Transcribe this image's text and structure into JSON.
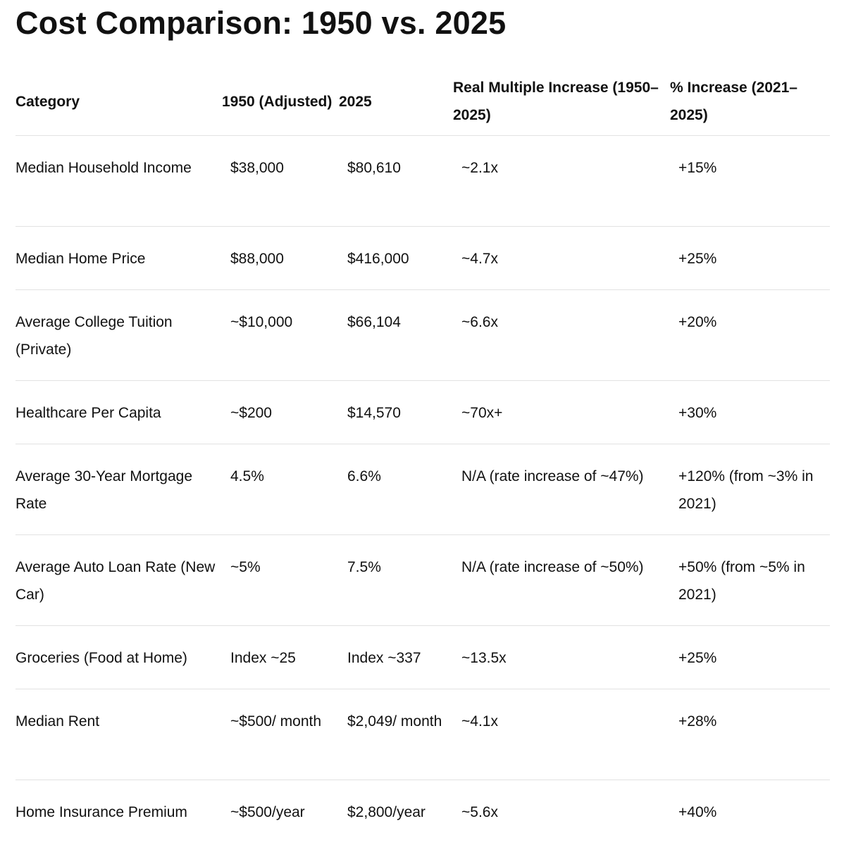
{
  "title": "Cost Comparison: 1950 vs. 2025",
  "table": {
    "headers": [
      "Category",
      "1950 (Adjusted)",
      "2025",
      "Real Multiple Increase (1950–2025)",
      "% Increase (2021–2025)"
    ],
    "rows": [
      [
        "Median Household Income",
        "$38,000",
        "$80,610",
        "~2.1x",
        "+15%"
      ],
      [
        "Median Home Price",
        "$88,000",
        "$416,000",
        "~4.7x",
        "+25%"
      ],
      [
        "Average College Tuition (Private)",
        "~$10,000",
        "$66,104",
        "~6.6x",
        "+20%"
      ],
      [
        "Healthcare Per Capita",
        "~$200",
        "$14,570",
        "~70x+",
        "+30%"
      ],
      [
        "Average 30-Year Mortgage Rate",
        "4.5%",
        "6.6%",
        "N/A (rate increase of ~47%)",
        "+120% (from ~3% in 2021)"
      ],
      [
        "Average Auto Loan Rate (New Car)",
        "~5%",
        "7.5%",
        "N/A (rate increase of ~50%)",
        "+50% (from ~5% in 2021)"
      ],
      [
        "Groceries (Food at Home)",
        "Index ~25",
        "Index ~337",
        "~13.5x",
        "+25%"
      ],
      [
        "Median Rent",
        "~$500/ month",
        "$2,049/ month",
        "~4.1x",
        "+28%"
      ],
      [
        "Home Insurance Premium",
        "~$500/year",
        "$2,800/year",
        "~5.6x",
        "+40%"
      ]
    ]
  }
}
